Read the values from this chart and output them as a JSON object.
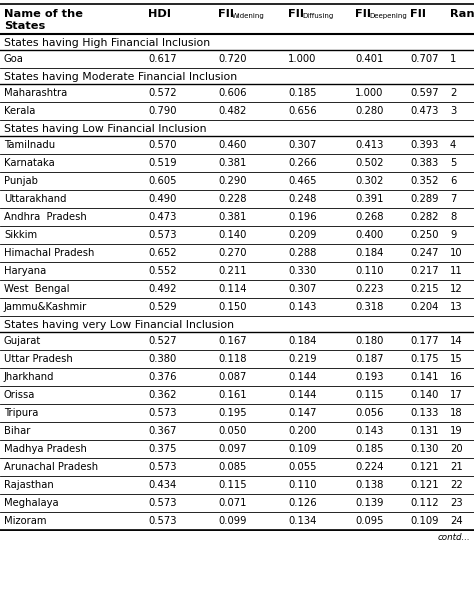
{
  "col_labels_main": [
    "Name of the",
    "HDI",
    "FII",
    "FII",
    "FII",
    "FII",
    "Rank"
  ],
  "col_labels_line2": [
    "States",
    "",
    "",
    "",
    "",
    "",
    ""
  ],
  "col_subscripts": [
    "",
    "",
    "Widening",
    "Diffusing",
    "Deepening",
    "",
    ""
  ],
  "section_headers": [
    "States having High Financial Inclusion",
    "States having Moderate Financial Inclusion",
    "States having Low Financial Inclusion",
    "States having very Low Financial Inclusion"
  ],
  "rows": [
    {
      "section": 0,
      "name": "Goa",
      "vals": [
        "0.617",
        "0.720",
        "1.000",
        "0.401",
        "0.707",
        "1"
      ]
    },
    {
      "section": 1,
      "name": "Maharashtra",
      "vals": [
        "0.572",
        "0.606",
        "0.185",
        "1.000",
        "0.597",
        "2"
      ]
    },
    {
      "section": 1,
      "name": "Kerala",
      "vals": [
        "0.790",
        "0.482",
        "0.656",
        "0.280",
        "0.473",
        "3"
      ]
    },
    {
      "section": 2,
      "name": "Tamilnadu",
      "vals": [
        "0.570",
        "0.460",
        "0.307",
        "0.413",
        "0.393",
        "4"
      ]
    },
    {
      "section": 2,
      "name": "Karnataka",
      "vals": [
        "0.519",
        "0.381",
        "0.266",
        "0.502",
        "0.383",
        "5"
      ]
    },
    {
      "section": 2,
      "name": "Punjab",
      "vals": [
        "0.605",
        "0.290",
        "0.465",
        "0.302",
        "0.352",
        "6"
      ]
    },
    {
      "section": 2,
      "name": "Uttarakhand",
      "vals": [
        "0.490",
        "0.228",
        "0.248",
        "0.391",
        "0.289",
        "7"
      ]
    },
    {
      "section": 2,
      "name": "Andhra  Pradesh",
      "vals": [
        "0.473",
        "0.381",
        "0.196",
        "0.268",
        "0.282",
        "8"
      ]
    },
    {
      "section": 2,
      "name": "Sikkim",
      "vals": [
        "0.573",
        "0.140",
        "0.209",
        "0.400",
        "0.250",
        "9"
      ]
    },
    {
      "section": 2,
      "name": "Himachal Pradesh",
      "vals": [
        "0.652",
        "0.270",
        "0.288",
        "0.184",
        "0.247",
        "10"
      ]
    },
    {
      "section": 2,
      "name": "Haryana",
      "vals": [
        "0.552",
        "0.211",
        "0.330",
        "0.110",
        "0.217",
        "11"
      ]
    },
    {
      "section": 2,
      "name": "West  Bengal",
      "vals": [
        "0.492",
        "0.114",
        "0.307",
        "0.223",
        "0.215",
        "12"
      ]
    },
    {
      "section": 2,
      "name": "Jammu&Kashmir",
      "vals": [
        "0.529",
        "0.150",
        "0.143",
        "0.318",
        "0.204",
        "13"
      ]
    },
    {
      "section": 3,
      "name": "Gujarat",
      "vals": [
        "0.527",
        "0.167",
        "0.184",
        "0.180",
        "0.177",
        "14"
      ]
    },
    {
      "section": 3,
      "name": "Uttar Pradesh",
      "vals": [
        "0.380",
        "0.118",
        "0.219",
        "0.187",
        "0.175",
        "15"
      ]
    },
    {
      "section": 3,
      "name": "Jharkhand",
      "vals": [
        "0.376",
        "0.087",
        "0.144",
        "0.193",
        "0.141",
        "16"
      ]
    },
    {
      "section": 3,
      "name": "Orissa",
      "vals": [
        "0.362",
        "0.161",
        "0.144",
        "0.115",
        "0.140",
        "17"
      ]
    },
    {
      "section": 3,
      "name": "Tripura",
      "vals": [
        "0.573",
        "0.195",
        "0.147",
        "0.056",
        "0.133",
        "18"
      ]
    },
    {
      "section": 3,
      "name": "Bihar",
      "vals": [
        "0.367",
        "0.050",
        "0.200",
        "0.143",
        "0.131",
        "19"
      ]
    },
    {
      "section": 3,
      "name": "Madhya Pradesh",
      "vals": [
        "0.375",
        "0.097",
        "0.109",
        "0.185",
        "0.130",
        "20"
      ]
    },
    {
      "section": 3,
      "name": "Arunachal Pradesh",
      "vals": [
        "0.573",
        "0.085",
        "0.055",
        "0.224",
        "0.121",
        "21"
      ]
    },
    {
      "section": 3,
      "name": "Rajasthan",
      "vals": [
        "0.434",
        "0.115",
        "0.110",
        "0.138",
        "0.121",
        "22"
      ]
    },
    {
      "section": 3,
      "name": "Meghalaya",
      "vals": [
        "0.573",
        "0.071",
        "0.126",
        "0.139",
        "0.112",
        "23"
      ]
    },
    {
      "section": 3,
      "name": "Mizoram",
      "vals": [
        "0.573",
        "0.099",
        "0.134",
        "0.095",
        "0.109",
        "24"
      ]
    }
  ],
  "bg_color": "#ffffff",
  "text_color": "#000000",
  "font_size": 7.2,
  "header_font_size": 8.2,
  "subscript_font_size": 5.0,
  "section_font_size": 7.8
}
